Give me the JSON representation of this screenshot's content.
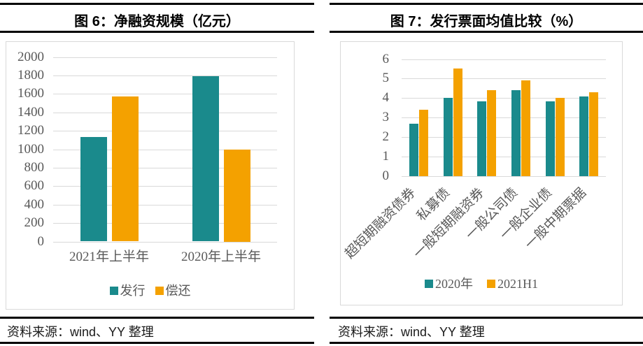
{
  "colors": {
    "teal": "#1a8a8c",
    "orange": "#f4a100",
    "grid": "#d9d9d9",
    "axis_label": "#595959",
    "rule": "#000000"
  },
  "panels": [
    {
      "title": "图 6：净融资规模（亿元）",
      "source": "资料来源：wind、YY 整理"
    },
    {
      "title": "图 7：发行票面均值比较（%）",
      "source": "资料来源：wind、YY 整理"
    }
  ],
  "chart_data": [
    {
      "type": "bar",
      "title": "净融资规模（亿元）",
      "categories": [
        "2021年上半年",
        "2020年上半年"
      ],
      "series": [
        {
          "name": "发行",
          "color": "#1a8a8c",
          "values": [
            1130,
            1790
          ]
        },
        {
          "name": "偿还",
          "color": "#f4a100",
          "values": [
            1570,
            1000
          ]
        }
      ],
      "ylim": [
        0,
        2000
      ],
      "ytick_step": 200,
      "grid": true,
      "legend_position": "bottom"
    },
    {
      "type": "bar",
      "title": "发行票面均值比较（%）",
      "categories": [
        "超短期融资债券",
        "私募债",
        "一般短期融资券",
        "一般公司债",
        "一般企业债",
        "一般中期票据"
      ],
      "series": [
        {
          "name": "2020年",
          "color": "#1a8a8c",
          "values": [
            2.7,
            4.0,
            3.85,
            4.4,
            3.85,
            4.1
          ]
        },
        {
          "name": "2021H1",
          "color": "#f4a100",
          "values": [
            3.4,
            5.5,
            4.4,
            4.9,
            4.0,
            4.3
          ]
        }
      ],
      "ylim": [
        0,
        6
      ],
      "ytick_step": 1,
      "grid": true,
      "legend_position": "bottom"
    }
  ]
}
